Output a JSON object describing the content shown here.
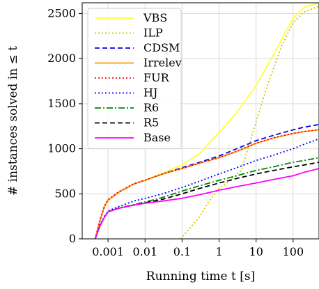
{
  "chart_data": {
    "type": "line",
    "title": "",
    "xlabel": "Running time t [s]",
    "ylabel": "# instances solved in ≤ t",
    "x_scale": "log",
    "xlim": [
      0.0002,
      500
    ],
    "ylim": [
      0,
      2620
    ],
    "x_ticks": [
      {
        "value": 0.001,
        "label": "0.001"
      },
      {
        "value": 0.01,
        "label": "0.01"
      },
      {
        "value": 0.1,
        "label": "0.1"
      },
      {
        "value": 1,
        "label": "1"
      },
      {
        "value": 10,
        "label": "10"
      },
      {
        "value": 100,
        "label": "100"
      }
    ],
    "y_ticks": [
      {
        "value": 0,
        "label": "0"
      },
      {
        "value": 500,
        "label": "500"
      },
      {
        "value": 1000,
        "label": "1000"
      },
      {
        "value": 1500,
        "label": "1500"
      },
      {
        "value": 2000,
        "label": "2000"
      },
      {
        "value": 2500,
        "label": "2500"
      }
    ],
    "grid": true,
    "legend_position": "top-left",
    "series": [
      {
        "name": "VBS",
        "color": "#ffff33",
        "dash": "solid",
        "x": [
          0.00045,
          0.0006,
          0.0008,
          0.001,
          0.002,
          0.005,
          0.01,
          0.03,
          0.1,
          0.3,
          1,
          3,
          10,
          30,
          100,
          200,
          500
        ],
        "y": [
          0,
          200,
          360,
          430,
          520,
          610,
          650,
          730,
          820,
          950,
          1180,
          1400,
          1700,
          2050,
          2450,
          2570,
          2630
        ]
      },
      {
        "name": "ILP",
        "color": "#c8c800",
        "dash": "dotted",
        "x": [
          0.09,
          0.15,
          0.3,
          0.5,
          1,
          2,
          4,
          6,
          10,
          20,
          50,
          100,
          200,
          500
        ],
        "y": [
          0,
          100,
          250,
          400,
          560,
          650,
          760,
          1000,
          1300,
          1700,
          2150,
          2400,
          2520,
          2580
        ]
      },
      {
        "name": "CDSM",
        "color": "#0000ee",
        "dash": "dashed",
        "x": [
          0.00045,
          0.0006,
          0.0008,
          0.001,
          0.002,
          0.005,
          0.01,
          0.03,
          0.1,
          0.3,
          1,
          3,
          10,
          30,
          100,
          200,
          500
        ],
        "y": [
          0,
          200,
          360,
          430,
          520,
          610,
          650,
          720,
          790,
          850,
          920,
          1000,
          1090,
          1150,
          1210,
          1240,
          1270
        ]
      },
      {
        "name": "Irrelev",
        "color": "#ff9900",
        "dash": "solid",
        "x": [
          0.00045,
          0.0006,
          0.0008,
          0.001,
          0.002,
          0.005,
          0.01,
          0.03,
          0.1,
          0.3,
          1,
          3,
          10,
          30,
          100,
          200,
          500
        ],
        "y": [
          0,
          200,
          360,
          430,
          520,
          610,
          650,
          720,
          780,
          840,
          900,
          970,
          1060,
          1120,
          1170,
          1190,
          1210
        ]
      },
      {
        "name": "FUR",
        "color": "#ff0000",
        "dash": "dotted",
        "x": [
          0.00045,
          0.0006,
          0.0008,
          0.001,
          0.002,
          0.005,
          0.01,
          0.03,
          0.1,
          0.3,
          1,
          3,
          10,
          30,
          100,
          200,
          500
        ],
        "y": [
          0,
          205,
          365,
          435,
          525,
          612,
          652,
          722,
          782,
          842,
          902,
          972,
          1062,
          1122,
          1172,
          1192,
          1212
        ]
      },
      {
        "name": "HJ",
        "color": "#0000ff",
        "dash": "dotted",
        "x": [
          0.00045,
          0.0006,
          0.0008,
          0.001,
          0.002,
          0.005,
          0.01,
          0.03,
          0.1,
          0.3,
          1,
          3,
          10,
          30,
          100,
          200,
          500
        ],
        "y": [
          0,
          150,
          250,
          310,
          360,
          420,
          450,
          500,
          570,
          640,
          720,
          790,
          870,
          930,
          1000,
          1050,
          1110
        ]
      },
      {
        "name": "R6",
        "color": "#008800",
        "dash": "dashdot",
        "x": [
          0.00045,
          0.0006,
          0.0008,
          0.001,
          0.002,
          0.005,
          0.01,
          0.03,
          0.1,
          0.3,
          1,
          3,
          10,
          30,
          100,
          200,
          500
        ],
        "y": [
          0,
          140,
          240,
          300,
          345,
          380,
          410,
          460,
          530,
          590,
          650,
          700,
          760,
          800,
          850,
          870,
          900
        ]
      },
      {
        "name": "R5",
        "color": "#000000",
        "dash": "dashed",
        "x": [
          0.00045,
          0.0006,
          0.0008,
          0.001,
          0.002,
          0.005,
          0.01,
          0.03,
          0.1,
          0.3,
          1,
          3,
          10,
          30,
          100,
          200,
          500
        ],
        "y": [
          0,
          140,
          240,
          300,
          340,
          375,
          400,
          440,
          500,
          560,
          620,
          670,
          720,
          760,
          800,
          820,
          850
        ]
      },
      {
        "name": "Base",
        "color": "#ff00ff",
        "dash": "solid",
        "x": [
          0.00045,
          0.0006,
          0.0008,
          0.001,
          0.002,
          0.005,
          0.01,
          0.03,
          0.1,
          0.3,
          1,
          3,
          10,
          30,
          100,
          200,
          500
        ],
        "y": [
          0,
          140,
          240,
          300,
          340,
          375,
          395,
          420,
          450,
          490,
          540,
          580,
          620,
          660,
          700,
          740,
          780
        ]
      }
    ]
  }
}
